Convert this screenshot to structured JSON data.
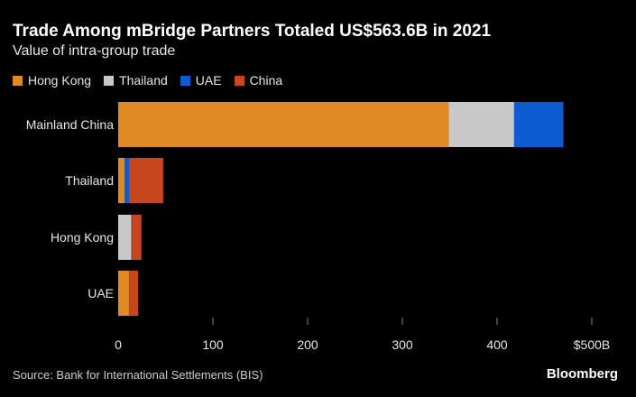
{
  "chart_data": {
    "type": "bar",
    "orientation": "horizontal",
    "stacked": true,
    "title": "Trade Among mBridge Partners Totaled US$563.6B in 2021",
    "subtitle": "Value of intra-group trade",
    "categories": [
      "Mainland China",
      "Thailand",
      "Hong Kong",
      "UAE"
    ],
    "series": [
      {
        "name": "Hong Kong",
        "color": "#e08a25",
        "values": [
          349,
          7,
          0,
          11.5
        ]
      },
      {
        "name": "Thailand",
        "color": "#c8c8c8",
        "values": [
          69,
          0,
          14,
          0
        ]
      },
      {
        "name": "UAE",
        "color": "#0d5bd1",
        "values": [
          52,
          4.5,
          0.5,
          0
        ]
      },
      {
        "name": "China",
        "color": "#c8461e",
        "values": [
          0,
          36,
          10,
          9.5
        ]
      }
    ],
    "xlim": [
      0,
      500
    ],
    "xticks": [
      "0",
      "100",
      "200",
      "300",
      "400",
      "$500B"
    ],
    "legend": "top-left",
    "grid": false
  },
  "source": "Source: Bank for International Settlements (BIS)",
  "logo": "Bloomberg"
}
